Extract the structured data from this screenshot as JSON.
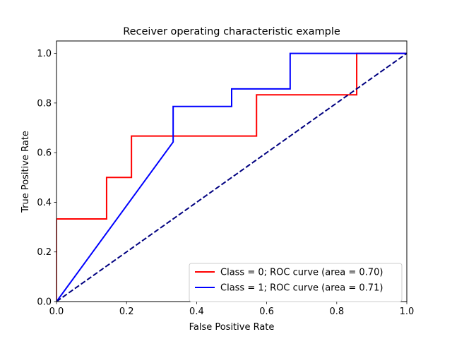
{
  "chart_data": {
    "type": "line",
    "title": "Receiver operating characteristic example",
    "xlabel": "False Positive Rate",
    "ylabel": "True Positive Rate",
    "xlim": [
      0.0,
      1.0
    ],
    "ylim": [
      0.0,
      1.05
    ],
    "xticks": [
      0.0,
      0.2,
      0.4,
      0.6,
      0.8,
      1.0
    ],
    "yticks": [
      0.0,
      0.2,
      0.4,
      0.6,
      0.8,
      1.0
    ],
    "xtick_labels": [
      "0.0",
      "0.2",
      "0.4",
      "0.6",
      "0.8",
      "1.0"
    ],
    "ytick_labels": [
      "0.0",
      "0.2",
      "0.4",
      "0.6",
      "0.8",
      "1.0"
    ],
    "grid": false,
    "legend_position": "lower-right",
    "series": [
      {
        "name": "Class = 0; ROC curve (area =  0.70)",
        "color": "#ff0000",
        "style": "solid",
        "x": [
          0.0,
          0.0,
          0.143,
          0.143,
          0.214,
          0.214,
          0.571,
          0.571,
          0.857,
          0.857,
          1.0
        ],
        "y": [
          0.0,
          0.333,
          0.333,
          0.5,
          0.5,
          0.667,
          0.667,
          0.833,
          0.833,
          1.0,
          1.0
        ]
      },
      {
        "name": "Class = 1; ROC curve (area =  0.71)",
        "color": "#0000ff",
        "style": "solid",
        "x": [
          0.0,
          0.333,
          0.333,
          0.5,
          0.5,
          0.667,
          0.667,
          1.0
        ],
        "y": [
          0.0,
          0.643,
          0.786,
          0.786,
          0.857,
          0.857,
          1.0,
          1.0
        ]
      },
      {
        "color": "#000080",
        "style": "dashed",
        "x": [
          0.0,
          1.0
        ],
        "y": [
          0.0,
          1.0
        ]
      }
    ]
  }
}
